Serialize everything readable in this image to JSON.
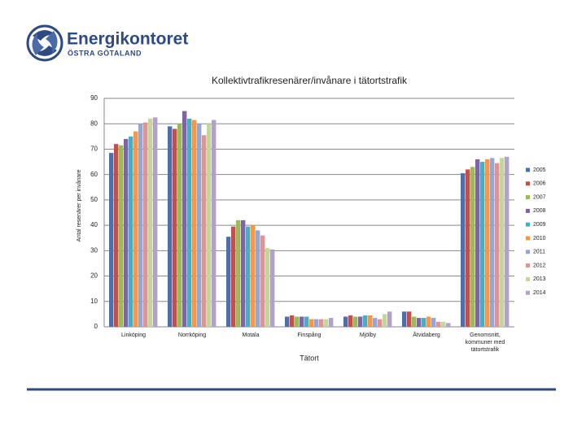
{
  "logo": {
    "name": "Energikontoret",
    "region": "ÖSTRA GÖTALAND"
  },
  "chart_data": {
    "type": "bar",
    "title": "Kollektivtrafikresenärer/invånare i tätortstrafik",
    "y_label": "Antal resenärer per invånare",
    "x_label": "Tätort",
    "categories": [
      "Linköping",
      "Norrköping",
      "Motala",
      "Finspång",
      "Mjölby",
      "Åtvidaberg",
      "Genomsnitt, kommuner med tätortstrafik"
    ],
    "series": [
      {
        "name": "2005",
        "color": "#4f6fa8",
        "values": [
          68.5,
          79,
          35.5,
          4,
          4,
          6,
          60.5
        ]
      },
      {
        "name": "2006",
        "color": "#c0504d",
        "values": [
          72,
          78,
          39.5,
          4.5,
          4.5,
          6,
          62
        ]
      },
      {
        "name": "2007",
        "color": "#9bbb59",
        "values": [
          71.5,
          80,
          42,
          4,
          4,
          4,
          63
        ]
      },
      {
        "name": "2008",
        "color": "#8064a2",
        "values": [
          74,
          85,
          42,
          4,
          4,
          3.5,
          66
        ]
      },
      {
        "name": "2009",
        "color": "#4bacc6",
        "values": [
          75,
          82,
          39.5,
          4,
          4.5,
          3.5,
          65
        ]
      },
      {
        "name": "2010",
        "color": "#f79646",
        "values": [
          77,
          81.5,
          40,
          3,
          4.5,
          4,
          66
        ]
      },
      {
        "name": "2011",
        "color": "#95a7cf",
        "values": [
          80,
          80,
          38,
          3,
          3.5,
          3.5,
          66.5
        ]
      },
      {
        "name": "2012",
        "color": "#d99694",
        "values": [
          80.5,
          75.5,
          36,
          3,
          3,
          2,
          64.5
        ]
      },
      {
        "name": "2013",
        "color": "#c3d69b",
        "values": [
          82,
          80,
          31,
          3,
          5,
          2,
          66.5
        ]
      },
      {
        "name": "2014",
        "color": "#b3a2c7",
        "values": [
          82.5,
          81.5,
          30.5,
          3.5,
          6,
          1.5,
          67
        ]
      }
    ],
    "ylim": [
      0,
      90
    ],
    "yticks": [
      0,
      10,
      20,
      30,
      40,
      50,
      60,
      70,
      80,
      90
    ],
    "grid": true
  }
}
